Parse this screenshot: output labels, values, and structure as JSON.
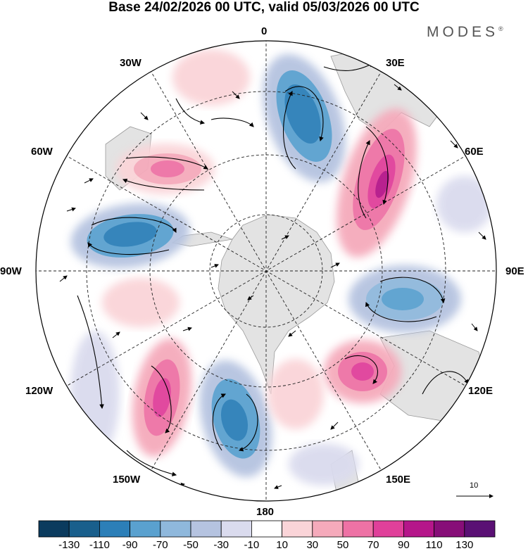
{
  "title": "Base 24/02/2026 00 UTC, valid 05/03/2026 00 UTC",
  "brand": {
    "name": "MODES",
    "mark": "®"
  },
  "longitude_labels": {
    "lon_0": "0",
    "lon_30e": "30E",
    "lon_60e": "60E",
    "lon_90e": "90E",
    "lon_120e": "120E",
    "lon_150e": "150E",
    "lon_180": "180",
    "lon_150w": "150W",
    "lon_120w": "120W",
    "lon_90w": "90W",
    "lon_60w": "60W",
    "lon_30w": "30W"
  },
  "reference_vector": {
    "label": "10"
  },
  "colorbar": {
    "colors": [
      "#0b3b5e",
      "#195f8c",
      "#2c7fb8",
      "#5aa1cf",
      "#8fb8dc",
      "#b5c3e0",
      "#dadbee",
      "#ffffff",
      "#fad4d8",
      "#f5aabb",
      "#ee72a5",
      "#e0409a",
      "#b5168a",
      "#870e78",
      "#5a1074"
    ],
    "ticks": [
      "-130",
      "-110",
      "-90",
      "-70",
      "-50",
      "-30",
      "-10",
      "10",
      "30",
      "50",
      "70",
      "90",
      "110",
      "130"
    ]
  },
  "map": {
    "projection": "south-polar-stereographic",
    "field": "500 hPa geopotential anomaly with wind vectors",
    "anomaly_centers": [
      {
        "sign": "negative",
        "value": -110,
        "region": "south of Africa / South Atlantic"
      },
      {
        "sign": "positive",
        "value": 90,
        "region": "southern Indian Ocean"
      },
      {
        "sign": "negative",
        "value": -70,
        "region": "southern Indian Ocean near 90E"
      },
      {
        "sign": "positive",
        "value": 70,
        "region": "south of Australia"
      },
      {
        "sign": "negative",
        "value": -90,
        "region": "Ross Sea / South Pacific"
      },
      {
        "sign": "positive",
        "value": 70,
        "region": "South Pacific 140W"
      },
      {
        "sign": "negative",
        "value": -90,
        "region": "Drake Passage / Bellingshausen Sea"
      },
      {
        "sign": "positive",
        "value": 50,
        "region": "South Atlantic 40W"
      }
    ]
  }
}
